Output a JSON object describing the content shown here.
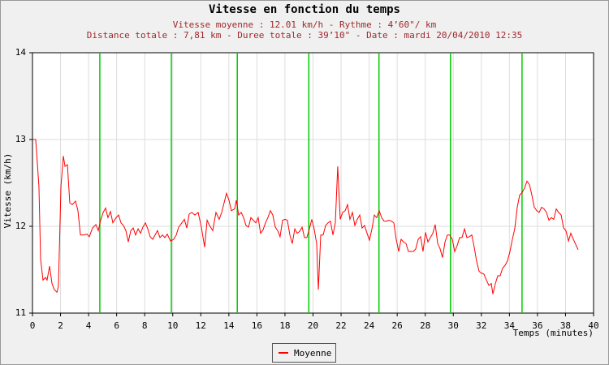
{
  "chart_data": {
    "type": "line",
    "title": "Vitesse en fonction du temps",
    "subtitle": [
      "Vitesse moyenne : 12.01 km/h - Rythme : 4’60\"/ km",
      "Distance totale : 7,81 km - Duree totale : 39’10\" - Date : mardi 20/04/2010 12:35"
    ],
    "xlabel": "Temps (minutes)",
    "ylabel": "Vitesse (km/h)",
    "xlim": [
      0,
      40
    ],
    "xticks": [
      0,
      2,
      4,
      6,
      8,
      10,
      12,
      14,
      16,
      18,
      20,
      22,
      24,
      26,
      28,
      30,
      32,
      34,
      36,
      38,
      40
    ],
    "ylim": [
      11,
      14
    ],
    "yticks": [
      11,
      12,
      13,
      14
    ],
    "grid": true,
    "legend": "bottom",
    "markers": [
      4.8,
      9.9,
      14.6,
      19.7,
      24.7,
      29.8,
      34.9
    ],
    "marker_color": "#00cc00",
    "x": [
      0,
      0.23,
      0.46,
      0.58,
      0.75,
      0.93,
      1.04,
      1.22,
      1.39,
      1.56,
      1.74,
      1.85,
      2.03,
      2.2,
      2.32,
      2.49,
      2.66,
      2.84,
      3.07,
      3.24,
      3.42,
      3.65,
      3.88,
      4.05,
      4.28,
      4.52,
      4.69,
      4.86,
      5.04,
      5.21,
      5.38,
      5.56,
      5.73,
      5.96,
      6.14,
      6.31,
      6.48,
      6.66,
      6.83,
      7.01,
      7.18,
      7.35,
      7.53,
      7.7,
      7.87,
      8.05,
      8.22,
      8.39,
      8.57,
      8.74,
      8.91,
      9.09,
      9.26,
      9.44,
      9.61,
      9.84,
      10.07,
      10.25,
      10.42,
      10.65,
      10.83,
      11.0,
      11.17,
      11.35,
      11.58,
      11.81,
      12.04,
      12.27,
      12.45,
      12.62,
      12.85,
      13.08,
      13.31,
      13.49,
      13.66,
      13.83,
      14.01,
      14.18,
      14.41,
      14.53,
      14.7,
      14.88,
      15.05,
      15.22,
      15.4,
      15.57,
      15.74,
      15.92,
      16.09,
      16.26,
      16.44,
      16.61,
      16.78,
      16.96,
      17.13,
      17.31,
      17.48,
      17.65,
      17.83,
      18.0,
      18.17,
      18.35,
      18.52,
      18.7,
      18.87,
      19.04,
      19.22,
      19.39,
      19.56,
      19.74,
      19.91,
      20.08,
      20.26,
      20.38,
      20.55,
      20.72,
      20.9,
      21.07,
      21.24,
      21.42,
      21.59,
      21.76,
      21.94,
      22.11,
      22.29,
      22.46,
      22.63,
      22.81,
      22.98,
      23.15,
      23.33,
      23.5,
      23.67,
      23.85,
      24.02,
      24.2,
      24.37,
      24.54,
      24.72,
      24.89,
      25.06,
      25.24,
      25.41,
      25.59,
      25.76,
      25.93,
      26.11,
      26.28,
      26.45,
      26.63,
      26.8,
      26.98,
      27.15,
      27.32,
      27.5,
      27.67,
      27.84,
      28.02,
      28.19,
      28.37,
      28.54,
      28.71,
      28.89,
      29.06,
      29.23,
      29.41,
      29.58,
      29.75,
      29.93,
      30.1,
      30.28,
      30.45,
      30.62,
      30.8,
      30.97,
      31.14,
      31.32,
      31.49,
      31.66,
      31.84,
      32.01,
      32.18,
      32.36,
      32.53,
      32.71,
      32.82,
      33.0,
      33.17,
      33.34,
      33.52,
      33.69,
      33.86,
      34.04,
      34.21,
      34.38,
      34.56,
      34.73,
      34.91,
      35.08,
      35.25,
      35.43,
      35.6,
      35.77,
      35.95,
      36.12,
      36.3,
      36.47,
      36.64,
      36.82,
      36.99,
      37.16,
      37.34,
      37.51,
      37.69,
      37.86,
      38.03,
      38.21,
      38.38,
      38.56,
      38.73,
      38.9
    ],
    "series": [
      {
        "name": "Moyenne",
        "color": "#ff0000",
        "values": [
          13.0,
          13.0,
          12.46,
          11.62,
          11.38,
          11.41,
          11.38,
          11.54,
          11.34,
          11.27,
          11.24,
          11.31,
          12.46,
          12.81,
          12.69,
          12.71,
          12.27,
          12.25,
          12.29,
          12.18,
          11.9,
          11.9,
          11.91,
          11.88,
          11.98,
          12.02,
          11.95,
          12.07,
          12.16,
          12.21,
          12.1,
          12.17,
          12.04,
          12.1,
          12.13,
          12.04,
          12.01,
          11.95,
          11.82,
          11.95,
          11.98,
          11.9,
          11.97,
          11.92,
          11.99,
          12.04,
          11.97,
          11.88,
          11.85,
          11.9,
          11.95,
          11.87,
          11.9,
          11.87,
          11.91,
          11.83,
          11.85,
          11.9,
          11.99,
          12.04,
          12.08,
          11.98,
          12.14,
          12.16,
          12.13,
          12.16,
          11.99,
          11.76,
          12.07,
          12.01,
          11.95,
          12.16,
          12.08,
          12.16,
          12.27,
          12.38,
          12.3,
          12.18,
          12.2,
          12.3,
          12.13,
          12.16,
          12.1,
          12.01,
          11.99,
          12.1,
          12.07,
          12.04,
          12.1,
          11.92,
          11.96,
          12.04,
          12.1,
          12.18,
          12.13,
          11.99,
          11.95,
          11.88,
          12.07,
          12.08,
          12.07,
          11.9,
          11.8,
          11.97,
          11.92,
          11.94,
          11.99,
          11.87,
          11.87,
          11.97,
          12.08,
          11.97,
          11.8,
          11.27,
          11.9,
          11.9,
          12.01,
          12.04,
          12.06,
          11.9,
          12.04,
          12.69,
          12.08,
          12.16,
          12.18,
          12.25,
          12.08,
          12.16,
          12.01,
          12.08,
          12.13,
          11.98,
          12.01,
          11.92,
          11.84,
          11.97,
          12.13,
          12.1,
          12.18,
          12.1,
          12.06,
          12.06,
          12.07,
          12.06,
          12.04,
          11.85,
          11.71,
          11.85,
          11.82,
          11.8,
          11.71,
          11.71,
          11.71,
          11.74,
          11.85,
          11.88,
          11.71,
          11.93,
          11.82,
          11.87,
          11.92,
          12.02,
          11.8,
          11.74,
          11.64,
          11.82,
          11.9,
          11.9,
          11.85,
          11.71,
          11.78,
          11.87,
          11.87,
          11.97,
          11.87,
          11.88,
          11.9,
          11.76,
          11.6,
          11.48,
          11.46,
          11.45,
          11.38,
          11.32,
          11.34,
          11.22,
          11.34,
          11.43,
          11.43,
          11.52,
          11.55,
          11.6,
          11.71,
          11.85,
          11.97,
          12.22,
          12.36,
          12.39,
          12.44,
          12.52,
          12.48,
          12.36,
          12.22,
          12.18,
          12.16,
          12.22,
          12.2,
          12.16,
          12.07,
          12.1,
          12.08,
          12.2,
          12.16,
          12.13,
          11.98,
          11.95,
          11.83,
          11.92,
          11.85,
          11.79,
          11.73
        ]
      }
    ]
  }
}
